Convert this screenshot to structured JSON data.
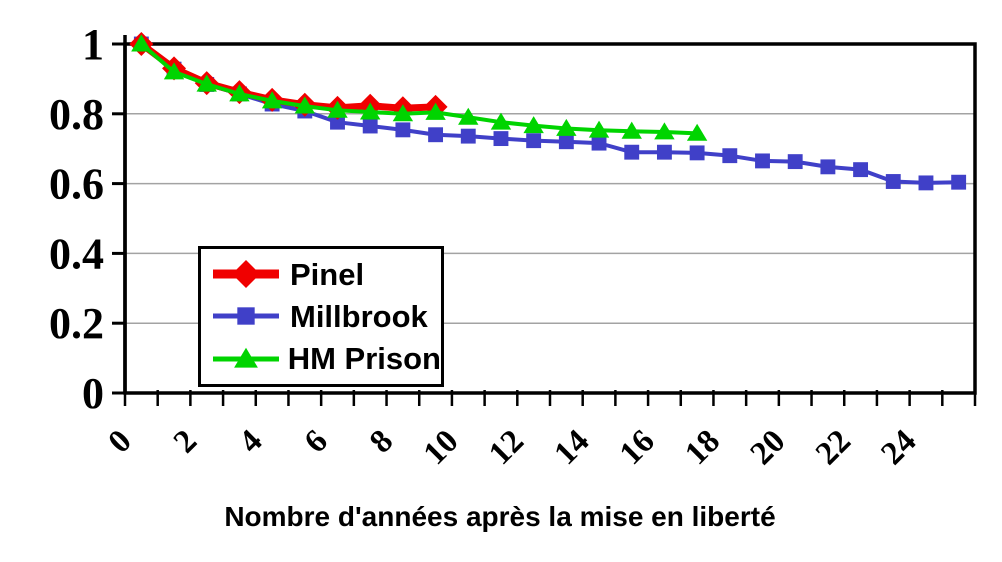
{
  "chart_data": {
    "type": "line",
    "title": "",
    "xlabel": "Nombre d'années après la mise en liberté",
    "ylabel": "",
    "x_unit": "années",
    "categories": [
      0,
      1,
      2,
      3,
      4,
      5,
      6,
      7,
      8,
      9,
      10,
      11,
      12,
      13,
      14,
      15,
      16,
      17,
      18,
      19,
      20,
      21,
      22,
      23,
      24,
      25
    ],
    "xlim": [
      0,
      26
    ],
    "ylim": [
      0,
      1
    ],
    "xtick_values": [
      0,
      2,
      4,
      6,
      8,
      10,
      12,
      14,
      16,
      18,
      20,
      22,
      24
    ],
    "xtick_labels": [
      "0",
      "2",
      "4",
      "6",
      "8",
      "10",
      "12",
      "14",
      "16",
      "18",
      "20",
      "22",
      "24"
    ],
    "ytick_values": [
      1,
      0.8,
      0.6,
      0.4,
      0.2,
      0
    ],
    "ytick_labels": [
      "1",
      "0.8",
      "0.6",
      "0.4",
      "0.2",
      "0"
    ],
    "grid": "horizontal",
    "legend_position": "inside-left",
    "colors": {
      "axis": "#000000",
      "grid": "#a3a3a3",
      "background": "#ffffff",
      "text": "#000000"
    },
    "series": [
      {
        "name": "Pinel",
        "color": "#f00000",
        "marker": "diamond",
        "values": [
          1.0,
          0.93,
          0.888,
          0.862,
          0.84,
          0.826,
          0.817,
          0.823,
          0.816,
          0.82
        ]
      },
      {
        "name": "Millbrook",
        "color": "#4040c8",
        "marker": "square",
        "values": [
          1.0,
          0.928,
          0.884,
          0.857,
          0.828,
          0.808,
          0.776,
          0.765,
          0.754,
          0.74,
          0.736,
          0.729,
          0.723,
          0.72,
          0.716,
          0.69,
          0.69,
          0.688,
          0.68,
          0.665,
          0.663,
          0.648,
          0.64,
          0.606,
          0.602,
          0.604
        ]
      },
      {
        "name": "HM Prison",
        "color": "#00d400",
        "marker": "triangle",
        "values": [
          1.0,
          0.92,
          0.885,
          0.857,
          0.837,
          0.822,
          0.81,
          0.805,
          0.8,
          0.804,
          0.79,
          0.776,
          0.766,
          0.758,
          0.753,
          0.75,
          0.748,
          0.744
        ]
      }
    ]
  }
}
